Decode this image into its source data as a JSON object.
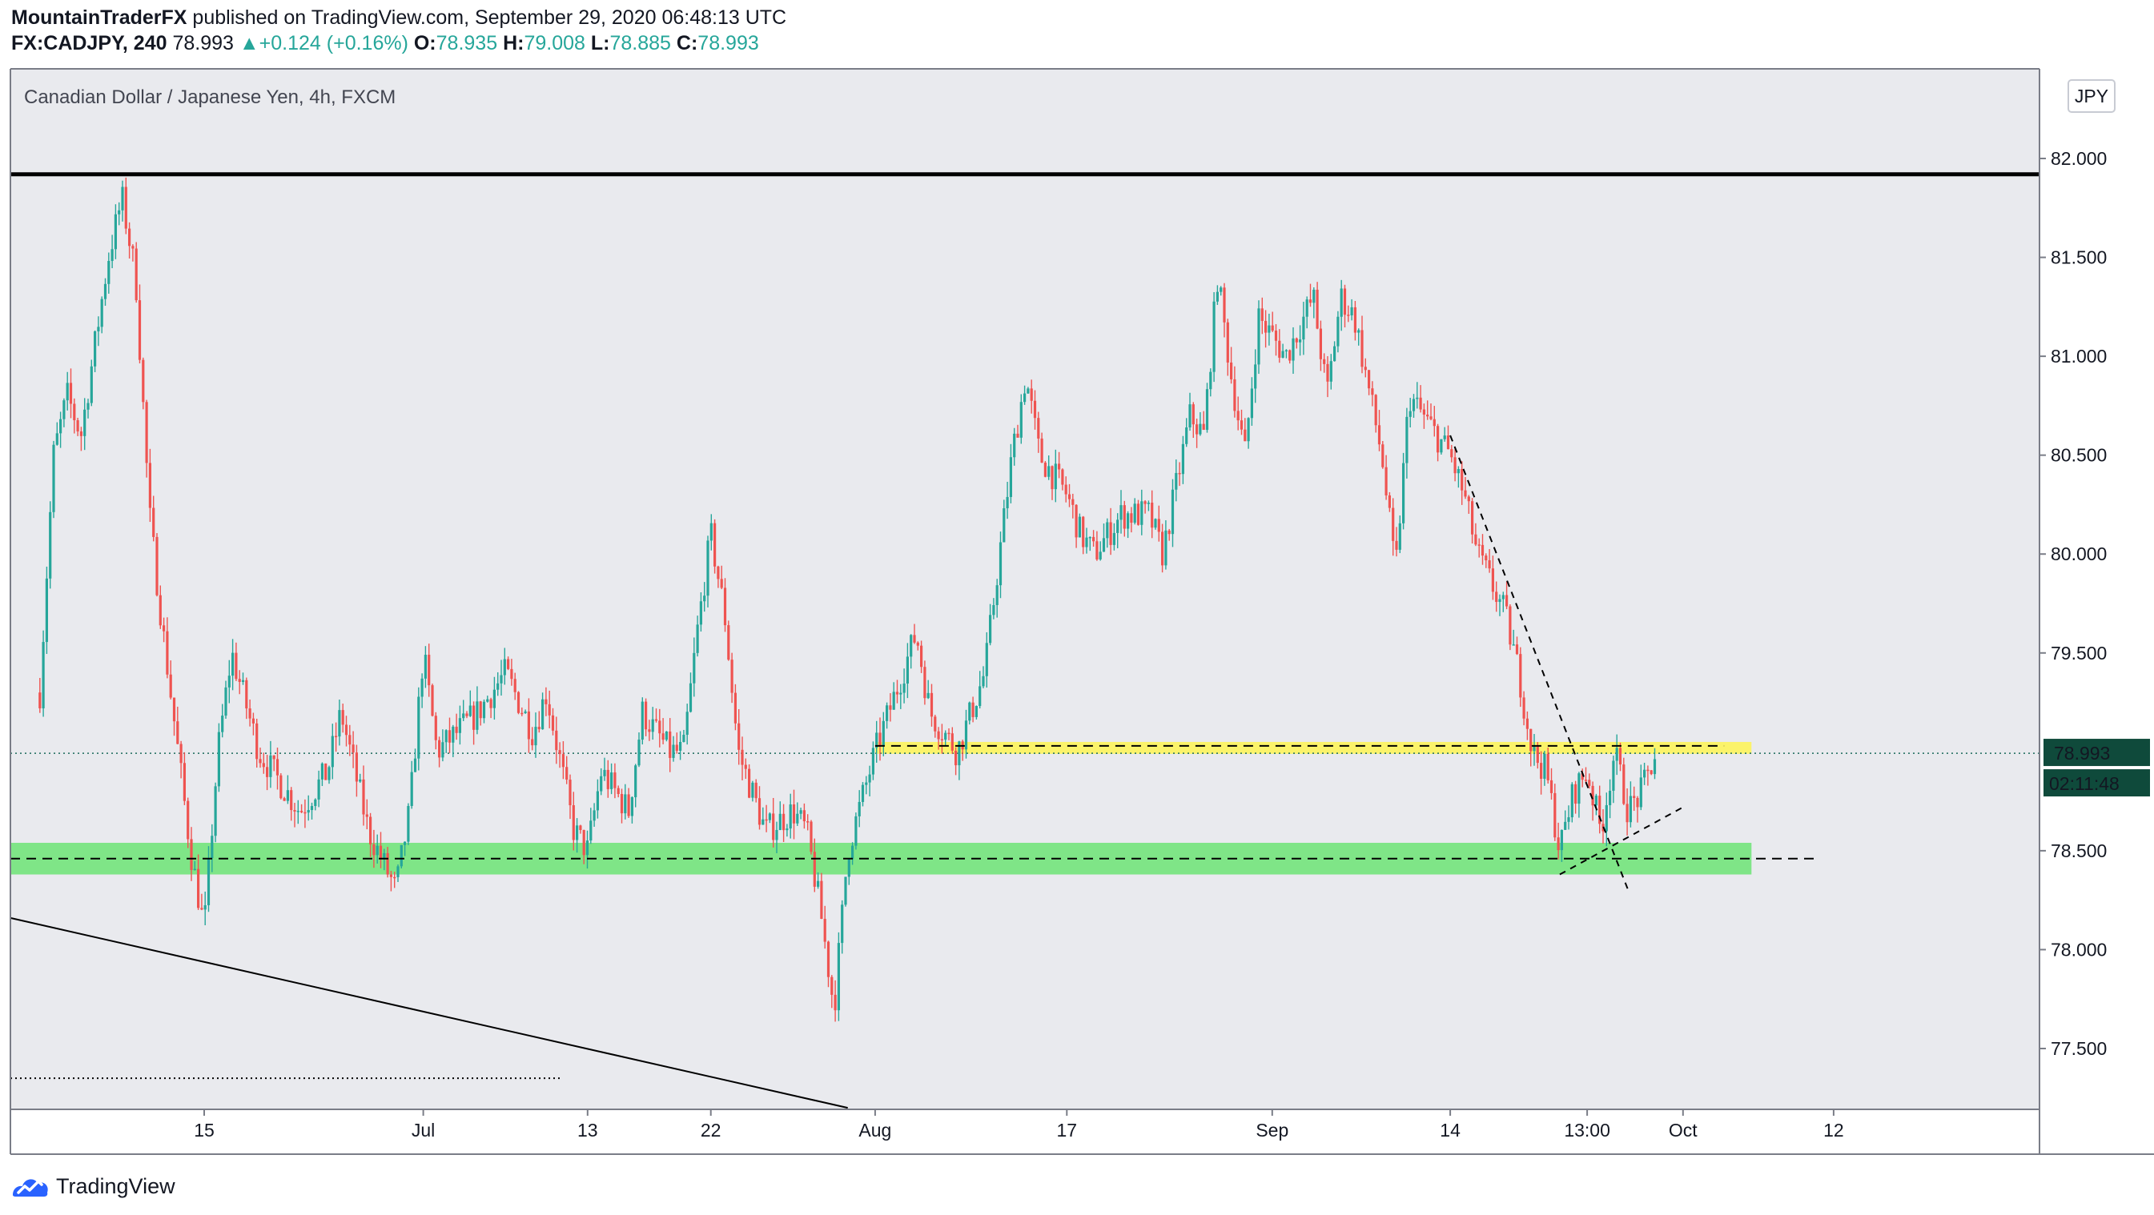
{
  "header": {
    "author": "MountainTraderFX",
    "published_text": "published on TradingView.com, September 29, 2020 06:48:13 UTC",
    "symbol": "FX:CADJPY, 240",
    "last": "78.993",
    "change": "+0.124 (+0.16%)",
    "open_label": "O:",
    "open_value": "78.935",
    "high_label": "H:",
    "high_value": "79.008",
    "low_label": "L:",
    "low_value": "78.885",
    "close_label": "C:",
    "close_value": "78.993"
  },
  "footer": {
    "brand": "TradingView"
  },
  "colors": {
    "up": "#26a69a",
    "down": "#ef5350",
    "panel_bg": "#e9eaee",
    "support_zone": "#7fe587",
    "resistance_zone": "#fbf36a",
    "price_badge": "#0f4a3b"
  },
  "chart_data": {
    "type": "candlestick",
    "title": "Canadian Dollar / Japanese Yen, 4h, FXCM",
    "currency": "JPY",
    "ylim": [
      77.2,
      82.45
    ],
    "y_ticks": [
      82.0,
      81.5,
      81.0,
      80.5,
      80.0,
      79.5,
      78.5,
      78.0,
      77.5
    ],
    "y_tick_labels": [
      "82.000",
      "81.500",
      "81.000",
      "80.500",
      "80.000",
      "79.500",
      "78.500",
      "78.000",
      "77.500"
    ],
    "x_ticks": [
      {
        "label": "15",
        "date": "2020-06-15"
      },
      {
        "label": "Jul",
        "date": "2020-07-01"
      },
      {
        "label": "13",
        "date": "2020-07-13"
      },
      {
        "label": "22",
        "date": "2020-07-22"
      },
      {
        "label": "Aug",
        "date": "2020-08-03"
      },
      {
        "label": "17",
        "date": "2020-08-17"
      },
      {
        "label": "Sep",
        "date": "2020-09-01"
      },
      {
        "label": "14",
        "date": "2020-09-14"
      },
      {
        "label": "13:00",
        "date": "2020-09-24"
      },
      {
        "label": "Oct",
        "date": "2020-10-01"
      },
      {
        "label": "12",
        "date": "2020-10-12"
      }
    ],
    "current_price": 78.993,
    "current_price_label": "78.993",
    "countdown_label": "02:11:48",
    "price_path": [
      {
        "date": "2020-06-03",
        "price": 79.3
      },
      {
        "date": "2020-06-04",
        "price": 80.5
      },
      {
        "date": "2020-06-05",
        "price": 80.8
      },
      {
        "date": "2020-06-06",
        "price": 80.6
      },
      {
        "date": "2020-06-08",
        "price": 81.5
      },
      {
        "date": "2020-06-09",
        "price": 81.8
      },
      {
        "date": "2020-06-10",
        "price": 81.4
      },
      {
        "date": "2020-06-11",
        "price": 80.2
      },
      {
        "date": "2020-06-12",
        "price": 79.6
      },
      {
        "date": "2020-06-14",
        "price": 78.5
      },
      {
        "date": "2020-06-15",
        "price": 78.1
      },
      {
        "date": "2020-06-16",
        "price": 79.0
      },
      {
        "date": "2020-06-17",
        "price": 79.5
      },
      {
        "date": "2020-06-19",
        "price": 79.0
      },
      {
        "date": "2020-06-22",
        "price": 78.7
      },
      {
        "date": "2020-06-24",
        "price": 78.9
      },
      {
        "date": "2020-06-25",
        "price": 79.2
      },
      {
        "date": "2020-06-27",
        "price": 78.6
      },
      {
        "date": "2020-06-29",
        "price": 78.3
      },
      {
        "date": "2020-06-30",
        "price": 78.7
      },
      {
        "date": "2020-07-01",
        "price": 79.5
      },
      {
        "date": "2020-07-02",
        "price": 79.0
      },
      {
        "date": "2020-07-05",
        "price": 79.2
      },
      {
        "date": "2020-07-07",
        "price": 79.4
      },
      {
        "date": "2020-07-09",
        "price": 79.1
      },
      {
        "date": "2020-07-10",
        "price": 79.3
      },
      {
        "date": "2020-07-12",
        "price": 78.6
      },
      {
        "date": "2020-07-13",
        "price": 78.5
      },
      {
        "date": "2020-07-14",
        "price": 78.9
      },
      {
        "date": "2020-07-16",
        "price": 78.7
      },
      {
        "date": "2020-07-17",
        "price": 79.2
      },
      {
        "date": "2020-07-19",
        "price": 79.0
      },
      {
        "date": "2020-07-20",
        "price": 79.0
      },
      {
        "date": "2020-07-21",
        "price": 79.6
      },
      {
        "date": "2020-07-22",
        "price": 80.1
      },
      {
        "date": "2020-07-23",
        "price": 79.7
      },
      {
        "date": "2020-07-24",
        "price": 79.0
      },
      {
        "date": "2020-07-26",
        "price": 78.6
      },
      {
        "date": "2020-07-28",
        "price": 78.7
      },
      {
        "date": "2020-07-29",
        "price": 78.6
      },
      {
        "date": "2020-07-30",
        "price": 78.2
      },
      {
        "date": "2020-07-31",
        "price": 77.7
      },
      {
        "date": "2020-08-01",
        "price": 78.5
      },
      {
        "date": "2020-08-03",
        "price": 79.0
      },
      {
        "date": "2020-08-05",
        "price": 79.4
      },
      {
        "date": "2020-08-06",
        "price": 79.6
      },
      {
        "date": "2020-08-07",
        "price": 79.2
      },
      {
        "date": "2020-08-09",
        "price": 79.0
      },
      {
        "date": "2020-08-11",
        "price": 79.4
      },
      {
        "date": "2020-08-13",
        "price": 80.5
      },
      {
        "date": "2020-08-14",
        "price": 80.9
      },
      {
        "date": "2020-08-15",
        "price": 80.5
      },
      {
        "date": "2020-08-17",
        "price": 80.3
      },
      {
        "date": "2020-08-18",
        "price": 80.1
      },
      {
        "date": "2020-08-19",
        "price": 80.0
      },
      {
        "date": "2020-08-21",
        "price": 80.2
      },
      {
        "date": "2020-08-23",
        "price": 80.2
      },
      {
        "date": "2020-08-24",
        "price": 80.0
      },
      {
        "date": "2020-08-26",
        "price": 80.7
      },
      {
        "date": "2020-08-27",
        "price": 80.6
      },
      {
        "date": "2020-08-28",
        "price": 81.4
      },
      {
        "date": "2020-08-29",
        "price": 80.9
      },
      {
        "date": "2020-08-30",
        "price": 80.5
      },
      {
        "date": "2020-08-31",
        "price": 81.2
      },
      {
        "date": "2020-09-02",
        "price": 81.0
      },
      {
        "date": "2020-09-04",
        "price": 81.3
      },
      {
        "date": "2020-09-05",
        "price": 80.8
      },
      {
        "date": "2020-09-06",
        "price": 81.3
      },
      {
        "date": "2020-09-07",
        "price": 81.2
      },
      {
        "date": "2020-09-09",
        "price": 80.5
      },
      {
        "date": "2020-09-10",
        "price": 79.9
      },
      {
        "date": "2020-09-11",
        "price": 80.8
      },
      {
        "date": "2020-09-13",
        "price": 80.6
      },
      {
        "date": "2020-09-14",
        "price": 80.5
      },
      {
        "date": "2020-09-15",
        "price": 80.3
      },
      {
        "date": "2020-09-16",
        "price": 80.0
      },
      {
        "date": "2020-09-18",
        "price": 79.7
      },
      {
        "date": "2020-09-19",
        "price": 79.4
      },
      {
        "date": "2020-09-20",
        "price": 79.0
      },
      {
        "date": "2020-09-21",
        "price": 78.9
      },
      {
        "date": "2020-09-22",
        "price": 78.5
      },
      {
        "date": "2020-09-23",
        "price": 78.8
      },
      {
        "date": "2020-09-24",
        "price": 78.9
      },
      {
        "date": "2020-09-25",
        "price": 78.6
      },
      {
        "date": "2020-09-26",
        "price": 79.0
      },
      {
        "date": "2020-09-27",
        "price": 78.7
      },
      {
        "date": "2020-09-28",
        "price": 78.8
      },
      {
        "date": "2020-09-29",
        "price": 78.993
      }
    ],
    "annotations": {
      "resistance_line": {
        "price": 81.92,
        "from": "2020-06-03",
        "to": "2020-10-17"
      },
      "support_zone": {
        "price_low": 78.38,
        "price_high": 78.54,
        "mid": 78.46,
        "from": "2020-06-03",
        "to": "2020-10-06"
      },
      "resistance_zone": {
        "price_low": 78.99,
        "price_high": 79.05,
        "from": "2020-08-03",
        "to": "2020-10-06"
      },
      "long_trendline": {
        "from": {
          "date": "2020-06-03",
          "price": 78.16
        },
        "to": {
          "date": "2020-08-01",
          "price": 77.2
        }
      },
      "short_downtrend": {
        "from": {
          "date": "2020-09-14",
          "price": 80.6
        },
        "to": {
          "date": "2020-09-27",
          "price": 78.3
        }
      },
      "short_uptrend": {
        "from": {
          "date": "2020-09-22",
          "price": 78.38
        },
        "to": {
          "date": "2020-10-01",
          "price": 78.72
        }
      }
    }
  }
}
